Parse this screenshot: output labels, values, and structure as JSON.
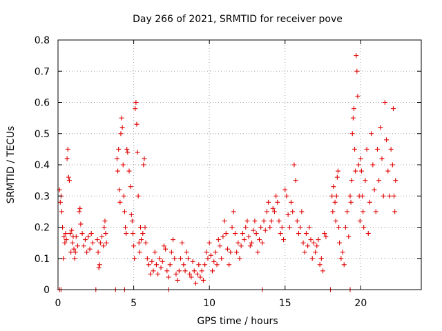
{
  "chart_data": {
    "type": "scatter",
    "title": "Day 266 of 2021, SRMTID for receiver pove",
    "xlabel": "GPS time / hours",
    "ylabel": "SRMTID / TECUs",
    "xlim": [
      0,
      24
    ],
    "ylim": [
      0,
      0.8
    ],
    "xticks": [
      0,
      5,
      10,
      15,
      20
    ],
    "yticks": [
      0,
      0.1,
      0.2,
      0.3,
      0.4,
      0.5,
      0.6,
      0.7,
      0.8
    ],
    "x_tick_labels": [
      "0",
      "5",
      "10",
      "15",
      "20"
    ],
    "y_tick_labels": [
      "0",
      "0.1",
      "0.2",
      "0.3",
      "0.4",
      "0.5",
      "0.6",
      "0.7",
      "0.8"
    ],
    "grid": true,
    "marker": "+",
    "series_color": "#e00000",
    "series": [
      {
        "name": "SRMTID",
        "points": [
          [
            0.1,
            0.32
          ],
          [
            0.15,
            0.28
          ],
          [
            0.2,
            0.3
          ],
          [
            0.25,
            0.25
          ],
          [
            0.3,
            0.2
          ],
          [
            0.35,
            0.1
          ],
          [
            0.4,
            0.17
          ],
          [
            0.45,
            0.15
          ],
          [
            0.5,
            0.18
          ],
          [
            0.55,
            0.16
          ],
          [
            0.6,
            0.42
          ],
          [
            0.65,
            0.45
          ],
          [
            0.7,
            0.36
          ],
          [
            0.75,
            0.35
          ],
          [
            0.8,
            0.18
          ],
          [
            0.85,
            0.12
          ],
          [
            0.9,
            0.19
          ],
          [
            0.95,
            0.15
          ],
          [
            1.0,
            0.17
          ],
          [
            1.05,
            0.13
          ],
          [
            1.1,
            0.1
          ],
          [
            1.15,
            0.12
          ],
          [
            1.2,
            0.17
          ],
          [
            1.3,
            0.14
          ],
          [
            1.4,
            0.25
          ],
          [
            1.45,
            0.26
          ],
          [
            1.5,
            0.21
          ],
          [
            1.6,
            0.18
          ],
          [
            1.7,
            0.14
          ],
          [
            1.8,
            0.16
          ],
          [
            1.9,
            0.12
          ],
          [
            2.0,
            0.17
          ],
          [
            2.1,
            0.13
          ],
          [
            2.2,
            0.18
          ],
          [
            2.3,
            0.15
          ],
          [
            2.6,
            0.16
          ],
          [
            2.65,
            0.12
          ],
          [
            2.7,
            0.07
          ],
          [
            2.75,
            0.08
          ],
          [
            2.8,
            0.15
          ],
          [
            2.9,
            0.17
          ],
          [
            3.0,
            0.14
          ],
          [
            3.05,
            0.2
          ],
          [
            3.1,
            0.22
          ],
          [
            3.15,
            0.18
          ],
          [
            3.2,
            0.15
          ],
          [
            3.9,
            0.42
          ],
          [
            3.95,
            0.38
          ],
          [
            4.0,
            0.45
          ],
          [
            4.05,
            0.32
          ],
          [
            4.1,
            0.28
          ],
          [
            4.15,
            0.5
          ],
          [
            4.2,
            0.55
          ],
          [
            4.25,
            0.52
          ],
          [
            4.3,
            0.4
          ],
          [
            4.35,
            0.3
          ],
          [
            4.4,
            0.25
          ],
          [
            4.45,
            0.2
          ],
          [
            4.5,
            0.18
          ],
          [
            4.55,
            0.45
          ],
          [
            4.6,
            0.44
          ],
          [
            4.7,
            0.38
          ],
          [
            4.8,
            0.33
          ],
          [
            4.85,
            0.24
          ],
          [
            4.9,
            0.22
          ],
          [
            4.95,
            0.18
          ],
          [
            5.0,
            0.14
          ],
          [
            5.05,
            0.1
          ],
          [
            5.1,
            0.58
          ],
          [
            5.15,
            0.6
          ],
          [
            5.2,
            0.53
          ],
          [
            5.25,
            0.44
          ],
          [
            5.3,
            0.3
          ],
          [
            5.35,
            0.15
          ],
          [
            5.4,
            0.12
          ],
          [
            5.45,
            0.2
          ],
          [
            5.5,
            0.16
          ],
          [
            5.6,
            0.18
          ],
          [
            5.65,
            0.4
          ],
          [
            5.7,
            0.42
          ],
          [
            5.75,
            0.2
          ],
          [
            5.8,
            0.15
          ],
          [
            5.9,
            0.1
          ],
          [
            6.0,
            0.08
          ],
          [
            6.1,
            0.05
          ],
          [
            6.2,
            0.09
          ],
          [
            6.3,
            0.06
          ],
          [
            6.4,
            0.12
          ],
          [
            6.5,
            0.08
          ],
          [
            6.6,
            0.05
          ],
          [
            6.7,
            0.1
          ],
          [
            6.8,
            0.07
          ],
          [
            6.9,
            0.09
          ],
          [
            7.0,
            0.14
          ],
          [
            7.1,
            0.13
          ],
          [
            7.2,
            0.06
          ],
          [
            7.3,
            0.04
          ],
          [
            7.4,
            0.08
          ],
          [
            7.5,
            0.12
          ],
          [
            7.6,
            0.16
          ],
          [
            7.7,
            0.1
          ],
          [
            7.8,
            0.05
          ],
          [
            7.9,
            0.03
          ],
          [
            8.0,
            0.06
          ],
          [
            8.1,
            0.1
          ],
          [
            8.2,
            0.15
          ],
          [
            8.3,
            0.08
          ],
          [
            8.4,
            0.06
          ],
          [
            8.5,
            0.12
          ],
          [
            8.6,
            0.1
          ],
          [
            8.7,
            0.05
          ],
          [
            8.8,
            0.04
          ],
          [
            8.9,
            0.09
          ],
          [
            9.0,
            0.06
          ],
          [
            9.1,
            0.02
          ],
          [
            9.2,
            0.05
          ],
          [
            9.3,
            0.08
          ],
          [
            9.4,
            0.04
          ],
          [
            9.5,
            0.06
          ],
          [
            9.6,
            0.03
          ],
          [
            9.7,
            0.08
          ],
          [
            9.8,
            0.12
          ],
          [
            9.9,
            0.1
          ],
          [
            10.0,
            0.15
          ],
          [
            10.1,
            0.11
          ],
          [
            10.2,
            0.06
          ],
          [
            10.3,
            0.09
          ],
          [
            10.4,
            0.12
          ],
          [
            10.5,
            0.08
          ],
          [
            10.6,
            0.16
          ],
          [
            10.7,
            0.14
          ],
          [
            10.8,
            0.1
          ],
          [
            10.9,
            0.17
          ],
          [
            11.0,
            0.22
          ],
          [
            11.1,
            0.18
          ],
          [
            11.2,
            0.13
          ],
          [
            11.3,
            0.08
          ],
          [
            11.4,
            0.12
          ],
          [
            11.5,
            0.2
          ],
          [
            11.6,
            0.25
          ],
          [
            11.7,
            0.18
          ],
          [
            11.8,
            0.12
          ],
          [
            11.9,
            0.15
          ],
          [
            12.0,
            0.1
          ],
          [
            12.1,
            0.14
          ],
          [
            12.2,
            0.18
          ],
          [
            12.3,
            0.16
          ],
          [
            12.4,
            0.2
          ],
          [
            12.5,
            0.22
          ],
          [
            12.6,
            0.17
          ],
          [
            12.7,
            0.14
          ],
          [
            12.8,
            0.15
          ],
          [
            12.9,
            0.19
          ],
          [
            13.0,
            0.22
          ],
          [
            13.1,
            0.18
          ],
          [
            13.2,
            0.12
          ],
          [
            13.3,
            0.16
          ],
          [
            13.4,
            0.2
          ],
          [
            13.5,
            0.15
          ],
          [
            13.6,
            0.22
          ],
          [
            13.7,
            0.19
          ],
          [
            13.8,
            0.25
          ],
          [
            13.9,
            0.28
          ],
          [
            14.0,
            0.2
          ],
          [
            14.1,
            0.22
          ],
          [
            14.2,
            0.26
          ],
          [
            14.3,
            0.25
          ],
          [
            14.4,
            0.3
          ],
          [
            14.5,
            0.28
          ],
          [
            14.6,
            0.22
          ],
          [
            14.7,
            0.18
          ],
          [
            14.8,
            0.2
          ],
          [
            14.9,
            0.16
          ],
          [
            15.0,
            0.32
          ],
          [
            15.1,
            0.3
          ],
          [
            15.2,
            0.24
          ],
          [
            15.3,
            0.2
          ],
          [
            15.4,
            0.28
          ],
          [
            15.5,
            0.25
          ],
          [
            15.6,
            0.4
          ],
          [
            15.7,
            0.35
          ],
          [
            15.8,
            0.22
          ],
          [
            15.9,
            0.18
          ],
          [
            16.0,
            0.2
          ],
          [
            16.1,
            0.25
          ],
          [
            16.2,
            0.15
          ],
          [
            16.3,
            0.12
          ],
          [
            16.4,
            0.18
          ],
          [
            16.5,
            0.14
          ],
          [
            16.6,
            0.2
          ],
          [
            16.7,
            0.16
          ],
          [
            16.8,
            0.1
          ],
          [
            16.9,
            0.15
          ],
          [
            17.0,
            0.12
          ],
          [
            17.1,
            0.14
          ],
          [
            17.2,
            0.16
          ],
          [
            17.3,
            0.08
          ],
          [
            17.4,
            0.1
          ],
          [
            17.5,
            0.06
          ],
          [
            17.6,
            0.18
          ],
          [
            17.7,
            0.17
          ],
          [
            18.1,
            0.3
          ],
          [
            18.15,
            0.25
          ],
          [
            18.2,
            0.33
          ],
          [
            18.3,
            0.28
          ],
          [
            18.35,
            0.22
          ],
          [
            18.4,
            0.3
          ],
          [
            18.45,
            0.36
          ],
          [
            18.5,
            0.38
          ],
          [
            18.55,
            0.2
          ],
          [
            18.6,
            0.15
          ],
          [
            18.7,
            0.1
          ],
          [
            18.8,
            0.12
          ],
          [
            18.9,
            0.08
          ],
          [
            19.0,
            0.2
          ],
          [
            19.1,
            0.25
          ],
          [
            19.2,
            0.17
          ],
          [
            19.3,
            0.3
          ],
          [
            19.35,
            0.28
          ],
          [
            19.4,
            0.35
          ],
          [
            19.45,
            0.5
          ],
          [
            19.5,
            0.55
          ],
          [
            19.55,
            0.58
          ],
          [
            19.6,
            0.45
          ],
          [
            19.65,
            0.38
          ],
          [
            19.7,
            0.75
          ],
          [
            19.75,
            0.7
          ],
          [
            19.8,
            0.62
          ],
          [
            19.85,
            0.4
          ],
          [
            19.9,
            0.3
          ],
          [
            19.95,
            0.22
          ],
          [
            20.0,
            0.42
          ],
          [
            20.05,
            0.38
          ],
          [
            20.1,
            0.3
          ],
          [
            20.15,
            0.25
          ],
          [
            20.2,
            0.2
          ],
          [
            20.3,
            0.35
          ],
          [
            20.4,
            0.45
          ],
          [
            20.5,
            0.18
          ],
          [
            20.6,
            0.28
          ],
          [
            20.7,
            0.5
          ],
          [
            20.8,
            0.4
          ],
          [
            20.9,
            0.32
          ],
          [
            21.0,
            0.25
          ],
          [
            21.1,
            0.45
          ],
          [
            21.2,
            0.35
          ],
          [
            21.3,
            0.52
          ],
          [
            21.4,
            0.42
          ],
          [
            21.5,
            0.3
          ],
          [
            21.6,
            0.6
          ],
          [
            21.7,
            0.48
          ],
          [
            21.8,
            0.38
          ],
          [
            21.9,
            0.3
          ],
          [
            22.0,
            0.45
          ],
          [
            22.1,
            0.4
          ],
          [
            22.15,
            0.58
          ],
          [
            22.2,
            0.3
          ],
          [
            22.25,
            0.25
          ],
          [
            22.3,
            0.35
          ],
          [
            0.1,
            0.0
          ],
          [
            0.2,
            0.0
          ],
          [
            2.5,
            0.0
          ],
          [
            3.8,
            0.0
          ],
          [
            4.4,
            0.0
          ],
          [
            7.3,
            0.0
          ],
          [
            13.5,
            0.0
          ],
          [
            18.0,
            0.0
          ],
          [
            19.3,
            0.0
          ]
        ]
      }
    ]
  }
}
